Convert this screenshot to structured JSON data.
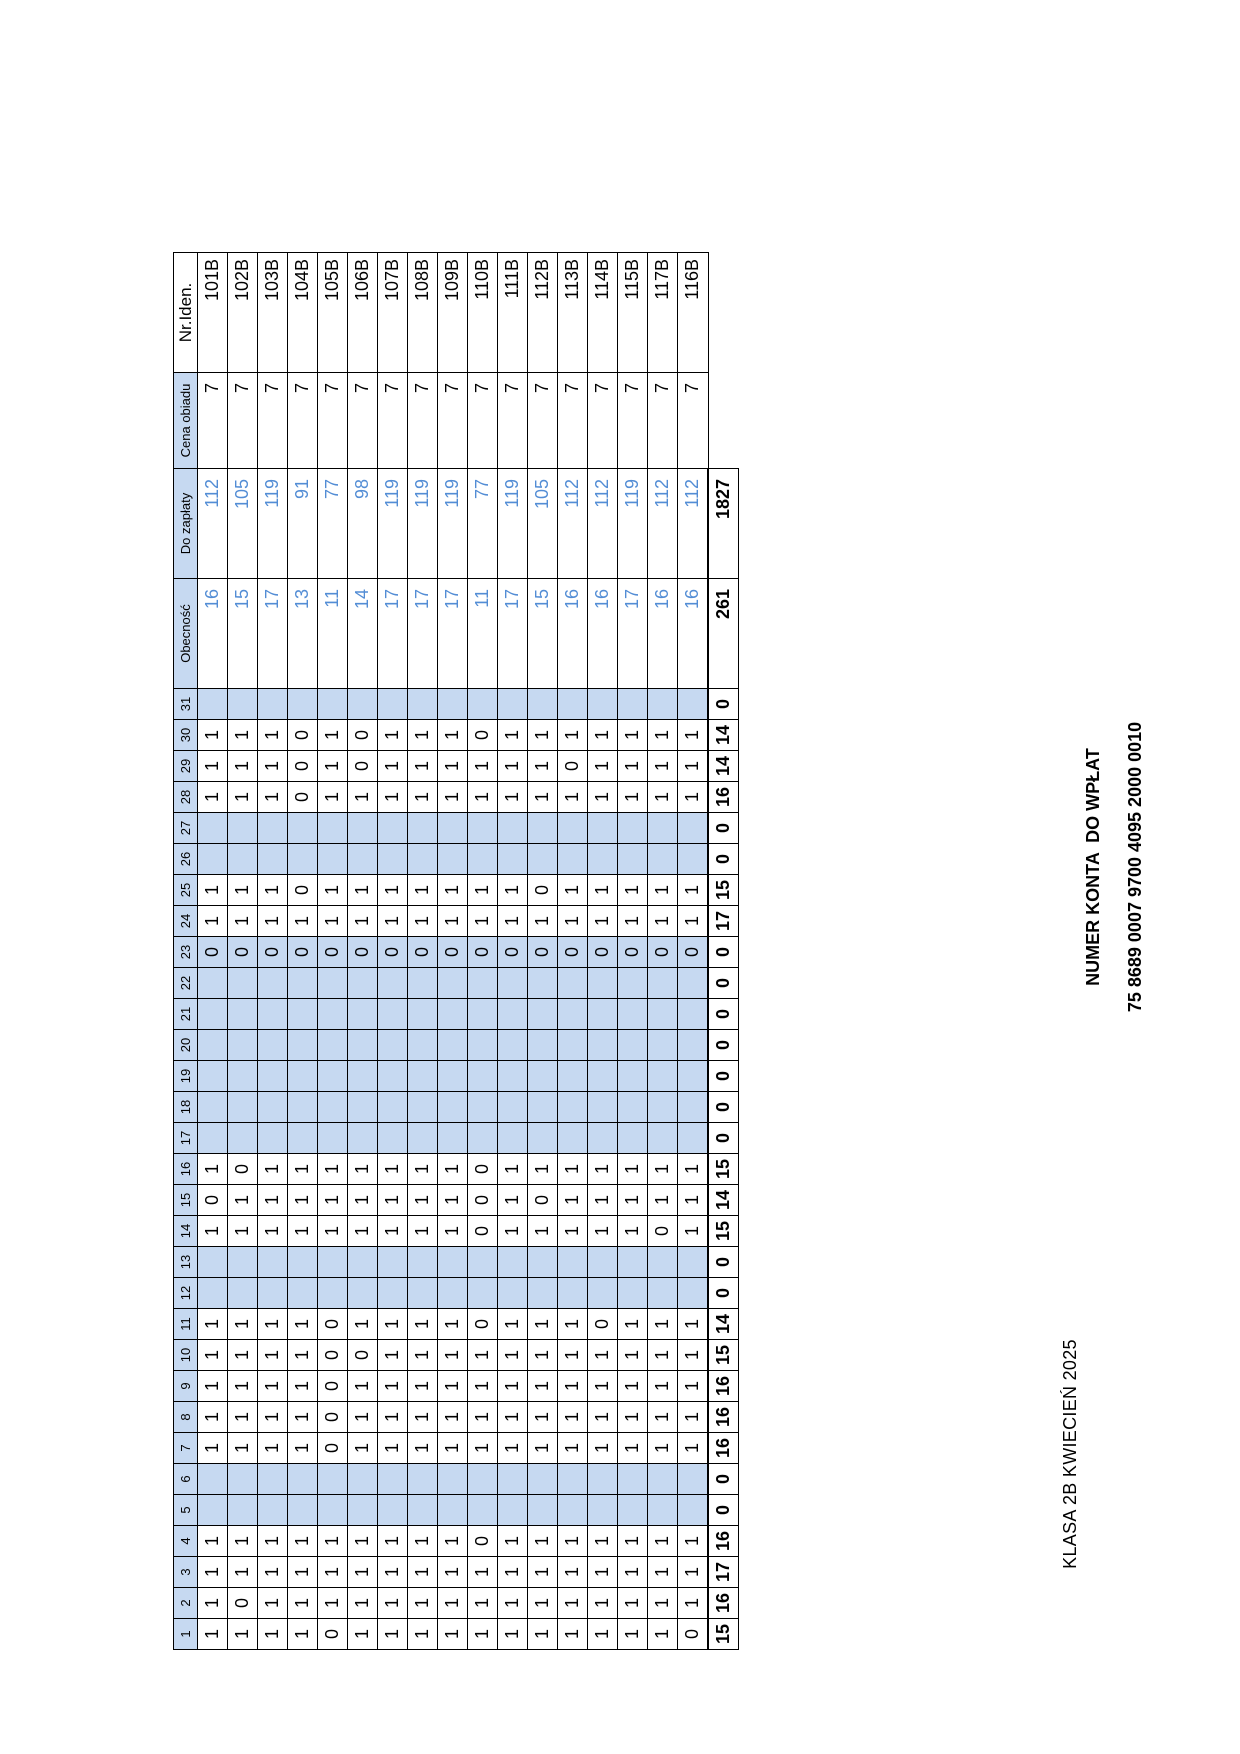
{
  "title": "KLASA 2B KWIECIEŃ 2025",
  "headers": {
    "days": [
      "1",
      "2",
      "3",
      "4",
      "5",
      "6",
      "7",
      "8",
      "9",
      "10",
      "11",
      "12",
      "13",
      "14",
      "15",
      "16",
      "17",
      "18",
      "19",
      "20",
      "21",
      "22",
      "23",
      "24",
      "25",
      "26",
      "27",
      "28",
      "29",
      "30",
      "31"
    ],
    "obecnosc": "Obecność",
    "do_zaplaty": "Do zapłaty",
    "cena_obiadu": "Cena obiadu",
    "nr_iden": "Nr.Iden."
  },
  "shaded_days": [
    5,
    6,
    12,
    13,
    17,
    18,
    19,
    20,
    21,
    22,
    23,
    26,
    27,
    31
  ],
  "rows": [
    {
      "id": "101B",
      "days": [
        "1",
        "1",
        "1",
        "1",
        "",
        "",
        "1",
        "1",
        "1",
        "1",
        "1",
        "",
        "",
        "1",
        "0",
        "1",
        "",
        "",
        "",
        "",
        "",
        "",
        "0",
        "1",
        "1",
        "",
        "",
        "1",
        "1",
        "1",
        ""
      ],
      "obecnosc": "16",
      "do_zaplaty": "112",
      "cena": "7"
    },
    {
      "id": "102B",
      "days": [
        "1",
        "0",
        "1",
        "1",
        "",
        "",
        "1",
        "1",
        "1",
        "1",
        "1",
        "",
        "",
        "1",
        "1",
        "0",
        "",
        "",
        "",
        "",
        "",
        "",
        "0",
        "1",
        "1",
        "",
        "",
        "1",
        "1",
        "1",
        ""
      ],
      "obecnosc": "15",
      "do_zaplaty": "105",
      "cena": "7"
    },
    {
      "id": "103B",
      "days": [
        "1",
        "1",
        "1",
        "1",
        "",
        "",
        "1",
        "1",
        "1",
        "1",
        "1",
        "",
        "",
        "1",
        "1",
        "1",
        "",
        "",
        "",
        "",
        "",
        "",
        "0",
        "1",
        "1",
        "",
        "",
        "1",
        "1",
        "1",
        ""
      ],
      "obecnosc": "17",
      "do_zaplaty": "119",
      "cena": "7"
    },
    {
      "id": "104B",
      "days": [
        "1",
        "1",
        "1",
        "1",
        "",
        "",
        "1",
        "1",
        "1",
        "1",
        "1",
        "",
        "",
        "1",
        "1",
        "1",
        "",
        "",
        "",
        "",
        "",
        "",
        "0",
        "1",
        "0",
        "",
        "",
        "0",
        "0",
        "0",
        ""
      ],
      "obecnosc": "13",
      "do_zaplaty": "91",
      "cena": "7"
    },
    {
      "id": "105B",
      "days": [
        "0",
        "1",
        "1",
        "1",
        "",
        "",
        "0",
        "0",
        "0",
        "0",
        "0",
        "",
        "",
        "1",
        "1",
        "1",
        "",
        "",
        "",
        "",
        "",
        "",
        "0",
        "1",
        "1",
        "",
        "",
        "1",
        "1",
        "1",
        ""
      ],
      "obecnosc": "11",
      "do_zaplaty": "77",
      "cena": "7"
    },
    {
      "id": "106B",
      "days": [
        "1",
        "1",
        "1",
        "1",
        "",
        "",
        "1",
        "1",
        "1",
        "0",
        "1",
        "",
        "",
        "1",
        "1",
        "1",
        "",
        "",
        "",
        "",
        "",
        "",
        "0",
        "1",
        "1",
        "",
        "",
        "1",
        "0",
        "0",
        ""
      ],
      "obecnosc": "14",
      "do_zaplaty": "98",
      "cena": "7"
    },
    {
      "id": "107B",
      "days": [
        "1",
        "1",
        "1",
        "1",
        "",
        "",
        "1",
        "1",
        "1",
        "1",
        "1",
        "",
        "",
        "1",
        "1",
        "1",
        "",
        "",
        "",
        "",
        "",
        "",
        "0",
        "1",
        "1",
        "",
        "",
        "1",
        "1",
        "1",
        ""
      ],
      "obecnosc": "17",
      "do_zaplaty": "119",
      "cena": "7"
    },
    {
      "id": "108B",
      "days": [
        "1",
        "1",
        "1",
        "1",
        "",
        "",
        "1",
        "1",
        "1",
        "1",
        "1",
        "",
        "",
        "1",
        "1",
        "1",
        "",
        "",
        "",
        "",
        "",
        "",
        "0",
        "1",
        "1",
        "",
        "",
        "1",
        "1",
        "1",
        ""
      ],
      "obecnosc": "17",
      "do_zaplaty": "119",
      "cena": "7"
    },
    {
      "id": "109B",
      "days": [
        "1",
        "1",
        "1",
        "1",
        "",
        "",
        "1",
        "1",
        "1",
        "1",
        "1",
        "",
        "",
        "1",
        "1",
        "1",
        "",
        "",
        "",
        "",
        "",
        "",
        "0",
        "1",
        "1",
        "",
        "",
        "1",
        "1",
        "1",
        ""
      ],
      "obecnosc": "17",
      "do_zaplaty": "119",
      "cena": "7"
    },
    {
      "id": "110B",
      "days": [
        "1",
        "1",
        "1",
        "0",
        "",
        "",
        "1",
        "1",
        "1",
        "1",
        "0",
        "",
        "",
        "0",
        "0",
        "0",
        "",
        "",
        "",
        "",
        "",
        "",
        "0",
        "1",
        "1",
        "",
        "",
        "1",
        "1",
        "0",
        ""
      ],
      "obecnosc": "11",
      "do_zaplaty": "77",
      "cena": "7"
    },
    {
      "id": "111B",
      "days": [
        "1",
        "1",
        "1",
        "1",
        "",
        "",
        "1",
        "1",
        "1",
        "1",
        "1",
        "",
        "",
        "1",
        "1",
        "1",
        "",
        "",
        "",
        "",
        "",
        "",
        "0",
        "1",
        "1",
        "",
        "",
        "1",
        "1",
        "1",
        ""
      ],
      "obecnosc": "17",
      "do_zaplaty": "119",
      "cena": "7"
    },
    {
      "id": "112B",
      "days": [
        "1",
        "1",
        "1",
        "1",
        "",
        "",
        "1",
        "1",
        "1",
        "1",
        "1",
        "",
        "",
        "1",
        "0",
        "1",
        "",
        "",
        "",
        "",
        "",
        "",
        "0",
        "1",
        "0",
        "",
        "",
        "1",
        "1",
        "1",
        ""
      ],
      "obecnosc": "15",
      "do_zaplaty": "105",
      "cena": "7"
    },
    {
      "id": "113B",
      "days": [
        "1",
        "1",
        "1",
        "1",
        "",
        "",
        "1",
        "1",
        "1",
        "1",
        "1",
        "",
        "",
        "1",
        "1",
        "1",
        "",
        "",
        "",
        "",
        "",
        "",
        "0",
        "1",
        "1",
        "",
        "",
        "1",
        "0",
        "1",
        ""
      ],
      "obecnosc": "16",
      "do_zaplaty": "112",
      "cena": "7"
    },
    {
      "id": "114B",
      "days": [
        "1",
        "1",
        "1",
        "1",
        "",
        "",
        "1",
        "1",
        "1",
        "1",
        "0",
        "",
        "",
        "1",
        "1",
        "1",
        "",
        "",
        "",
        "",
        "",
        "",
        "0",
        "1",
        "1",
        "",
        "",
        "1",
        "1",
        "1",
        ""
      ],
      "obecnosc": "16",
      "do_zaplaty": "112",
      "cena": "7"
    },
    {
      "id": "115B",
      "days": [
        "1",
        "1",
        "1",
        "1",
        "",
        "",
        "1",
        "1",
        "1",
        "1",
        "1",
        "",
        "",
        "1",
        "1",
        "1",
        "",
        "",
        "",
        "",
        "",
        "",
        "0",
        "1",
        "1",
        "",
        "",
        "1",
        "1",
        "1",
        ""
      ],
      "obecnosc": "17",
      "do_zaplaty": "119",
      "cena": "7"
    },
    {
      "id": "117B",
      "days": [
        "1",
        "1",
        "1",
        "1",
        "",
        "",
        "1",
        "1",
        "1",
        "1",
        "1",
        "",
        "",
        "0",
        "1",
        "1",
        "",
        "",
        "",
        "",
        "",
        "",
        "0",
        "1",
        "1",
        "",
        "",
        "1",
        "1",
        "1",
        ""
      ],
      "obecnosc": "16",
      "do_zaplaty": "112",
      "cena": "7"
    },
    {
      "id": "116B",
      "days": [
        "0",
        "1",
        "1",
        "1",
        "",
        "",
        "1",
        "1",
        "1",
        "1",
        "1",
        "",
        "",
        "1",
        "1",
        "1",
        "",
        "",
        "",
        "",
        "",
        "",
        "0",
        "1",
        "1",
        "",
        "",
        "1",
        "1",
        "1",
        ""
      ],
      "obecnosc": "16",
      "do_zaplaty": "112",
      "cena": "7"
    }
  ],
  "totals": {
    "days": [
      "15",
      "16",
      "17",
      "16",
      "0",
      "0",
      "16",
      "16",
      "16",
      "15",
      "14",
      "0",
      "0",
      "15",
      "14",
      "15",
      "0",
      "0",
      "0",
      "0",
      "0",
      "0",
      "0",
      "17",
      "15",
      "0",
      "0",
      "16",
      "14",
      "14",
      "0"
    ],
    "obecnosc": "261",
    "do_zaplaty": "1827"
  },
  "account": {
    "label": "NUMER KONTA  DO WPŁAT",
    "number": "75 8689 0007 9700 4095 2000 0010"
  }
}
